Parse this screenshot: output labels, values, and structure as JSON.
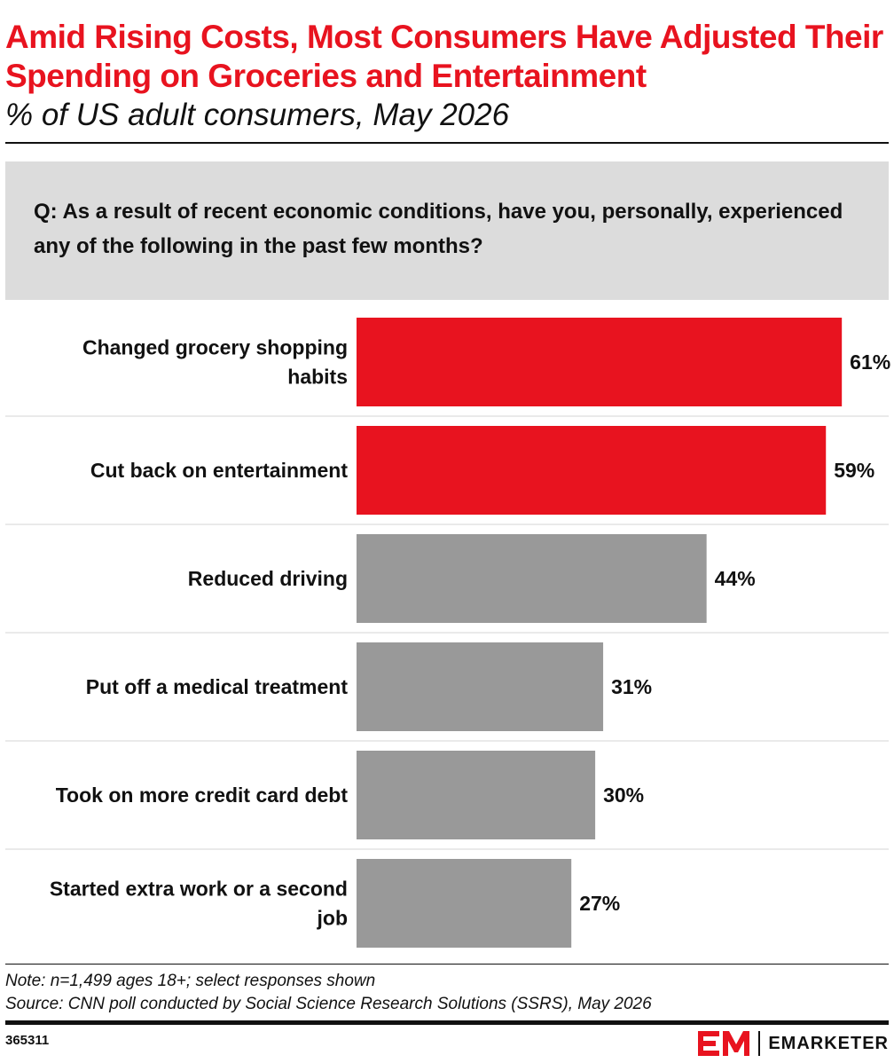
{
  "header": {
    "title": "Amid Rising Costs, Most Consumers Have Adjusted Their Spending on Groceries and Entertainment",
    "subtitle": "% of US adult consumers, May 2026"
  },
  "question": "Q: As a result of recent economic conditions, have you, personally, experienced any of the following in the past few months?",
  "chart_data": {
    "type": "bar",
    "orientation": "horizontal",
    "categories": [
      "Changed grocery shopping habits",
      "Cut back on entertainment",
      "Reduced driving",
      "Put off a medical treatment",
      "Took on more credit card debt",
      "Started extra work or a second job"
    ],
    "values": [
      61,
      59,
      44,
      31,
      30,
      27
    ],
    "value_labels": [
      "61%",
      "59%",
      "44%",
      "31%",
      "30%",
      "27%"
    ],
    "highlighted": [
      true,
      true,
      false,
      false,
      false,
      false
    ],
    "colors": {
      "highlight": "#e8131f",
      "default": "#999999",
      "row_divider": "#e3e3e3"
    },
    "grid": false,
    "legend": "none"
  },
  "footer": {
    "note": "Note: n=1,499 ages 18+; select responses shown",
    "source": "Source: CNN poll conducted by Social Science Research Solutions (SSRS), May 2026",
    "chart_id": "365311",
    "brand": "EMARKETER",
    "brand_color": "#e8131f"
  }
}
